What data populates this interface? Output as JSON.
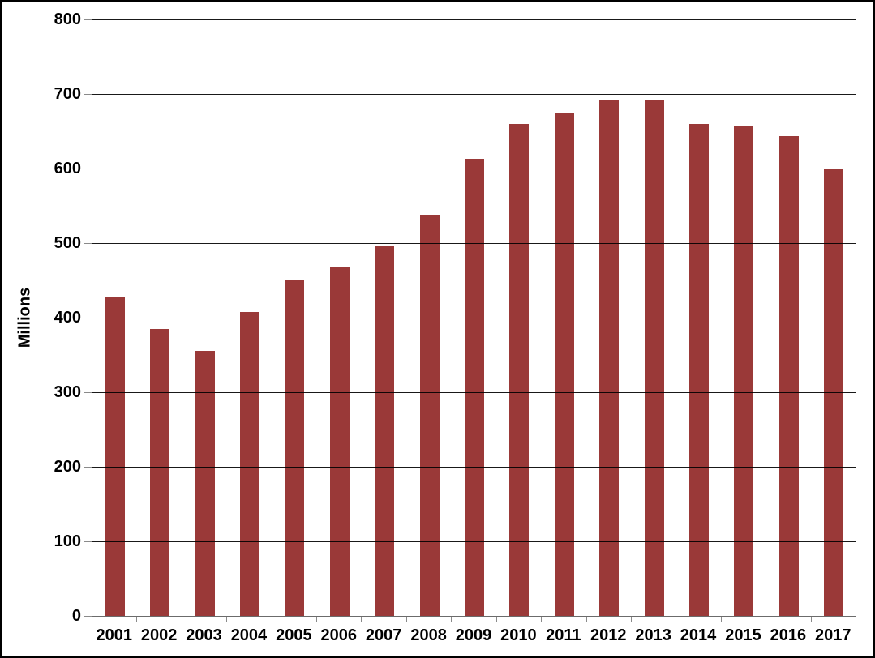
{
  "chart_data": {
    "type": "bar",
    "title": "",
    "xlabel": "",
    "ylabel": "Millions",
    "categories": [
      "2001",
      "2002",
      "2003",
      "2004",
      "2005",
      "2006",
      "2007",
      "2008",
      "2009",
      "2010",
      "2011",
      "2012",
      "2013",
      "2014",
      "2015",
      "2016",
      "2017"
    ],
    "values": [
      428,
      385,
      355,
      408,
      451,
      469,
      496,
      538,
      613,
      660,
      675,
      692,
      691,
      660,
      658,
      644,
      600
    ],
    "ylim": [
      0,
      800
    ],
    "ytick_step": 100,
    "ytick_labels": [
      "0",
      "100",
      "200",
      "300",
      "400",
      "500",
      "600",
      "700",
      "800"
    ],
    "grid": "on",
    "legend": "none",
    "colors": {
      "bar": "#9A3938",
      "gridline": "#000000",
      "axis_line": "#8A8A8A",
      "text": "#000000",
      "background": "#FFFFFF",
      "frame_border": "#000000"
    }
  }
}
